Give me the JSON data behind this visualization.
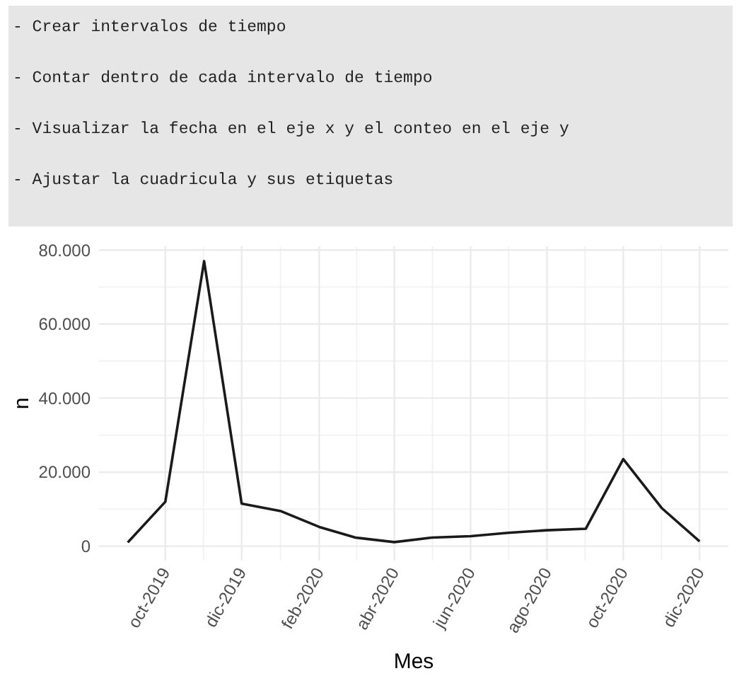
{
  "chart_data": {
    "type": "line",
    "xlabel": "Mes",
    "ylabel": "n",
    "annotations": [
      "- Crear intervalos de tiempo",
      "- Contar dentro de cada intervalo de tiempo",
      "- Visualizar la fecha en el eje x y el conteo en el eje y",
      "- Ajustar la cuadricula y sus etiquetas"
    ],
    "x": [
      "2019-09",
      "2019-10",
      "2019-11",
      "2019-12",
      "2020-01",
      "2020-02",
      "2020-03",
      "2020-04",
      "2020-05",
      "2020-06",
      "2020-07",
      "2020-08",
      "2020-09",
      "2020-10",
      "2020-11",
      "2020-12"
    ],
    "series": [
      {
        "color": "#1a1a1a",
        "values": [
          1000,
          12000,
          77000,
          11500,
          9500,
          5200,
          2300,
          1100,
          2300,
          2700,
          3600,
          4300,
          4700,
          23500,
          10200,
          1300
        ]
      }
    ],
    "xlim": [
      "2019-08-09",
      "2020-12-24"
    ],
    "xticks": [
      {
        "value": "2019-10",
        "label": "oct-2019"
      },
      {
        "value": "2019-12",
        "label": "dic-2019"
      },
      {
        "value": "2020-02",
        "label": "feb-2020"
      },
      {
        "value": "2020-04",
        "label": "abr-2020"
      },
      {
        "value": "2020-06",
        "label": "jun-2020"
      },
      {
        "value": "2020-08",
        "label": "ago-2020"
      },
      {
        "value": "2020-10",
        "label": "oct-2020"
      },
      {
        "value": "2020-12",
        "label": "dic-2020"
      }
    ],
    "ylim": [
      -3900,
      81000
    ],
    "yticks": [
      {
        "value": 0,
        "label": "0"
      },
      {
        "value": 20000,
        "label": "20.000"
      },
      {
        "value": 40000,
        "label": "40.000"
      },
      {
        "value": 60000,
        "label": "60.000"
      },
      {
        "value": 80000,
        "label": "80.000"
      }
    ],
    "grid": true,
    "line_style": "solid",
    "marker": "none"
  }
}
